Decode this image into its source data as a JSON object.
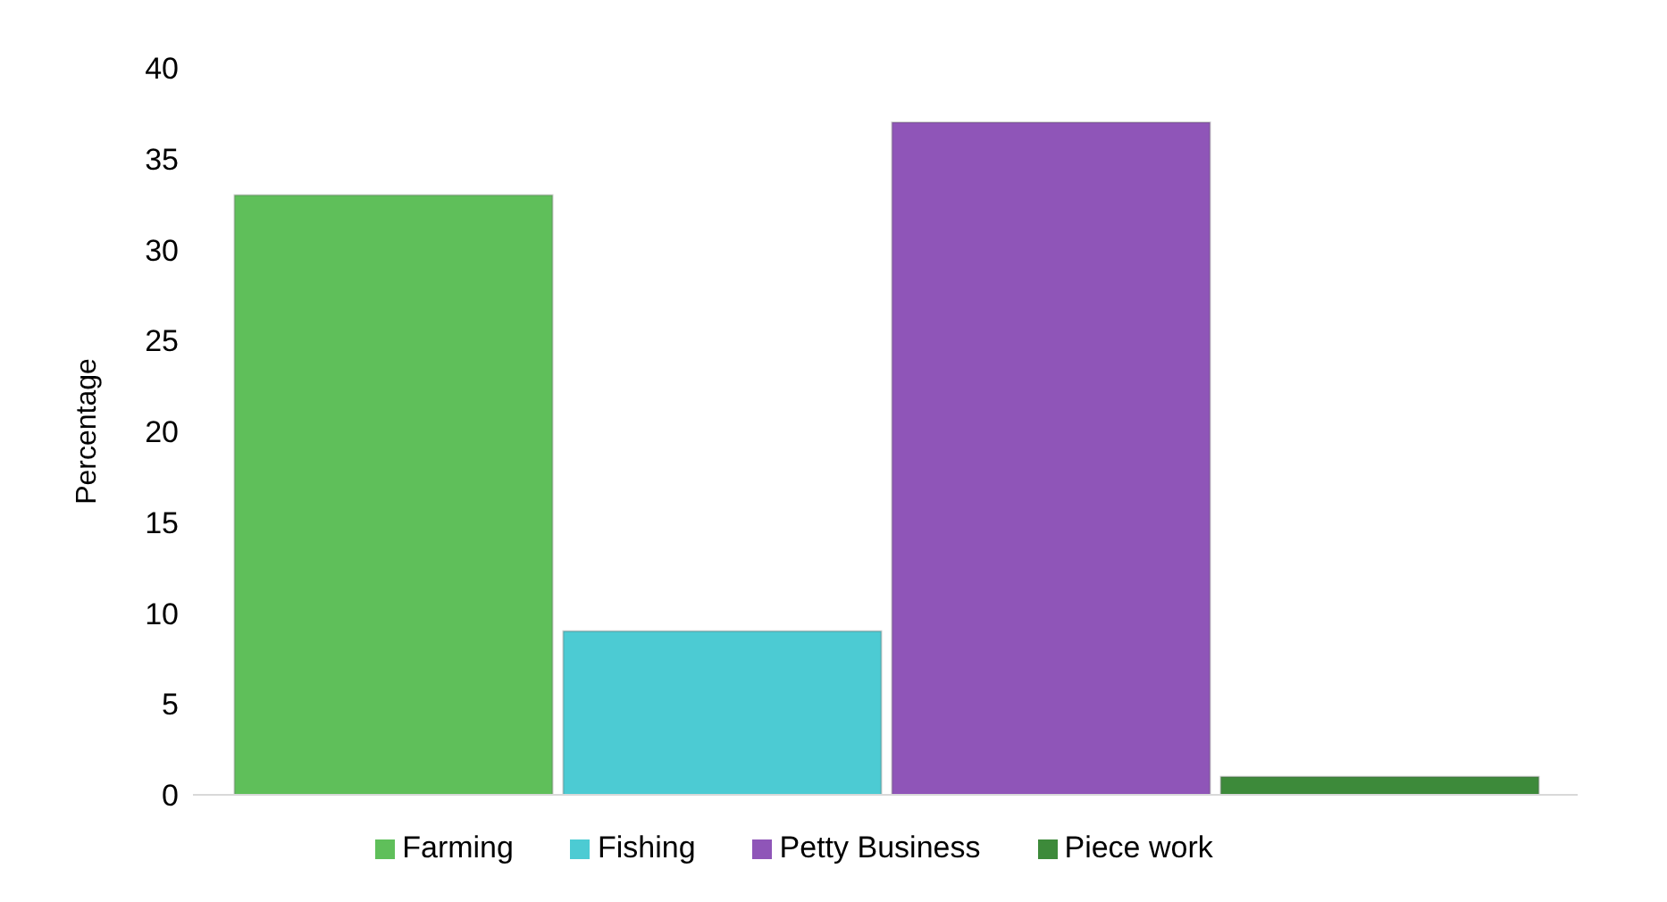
{
  "chart_data": {
    "type": "bar",
    "ylabel": "Percentage",
    "categories": [
      null
    ],
    "series": [
      {
        "name": "Farming",
        "color": "#5fbf5a",
        "values": [
          33
        ]
      },
      {
        "name": "Fishing",
        "color": "#4ccbd3",
        "values": [
          9
        ]
      },
      {
        "name": "Petty Business",
        "color": "#8f55b8",
        "values": [
          37
        ]
      },
      {
        "name": "Piece work",
        "color": "#3d8a3a",
        "values": [
          1
        ]
      }
    ],
    "ylim": [
      0,
      40
    ],
    "yticks": [
      0,
      5,
      10,
      15,
      20,
      25,
      30,
      35,
      40
    ],
    "grid": false,
    "legend": "bottom"
  }
}
